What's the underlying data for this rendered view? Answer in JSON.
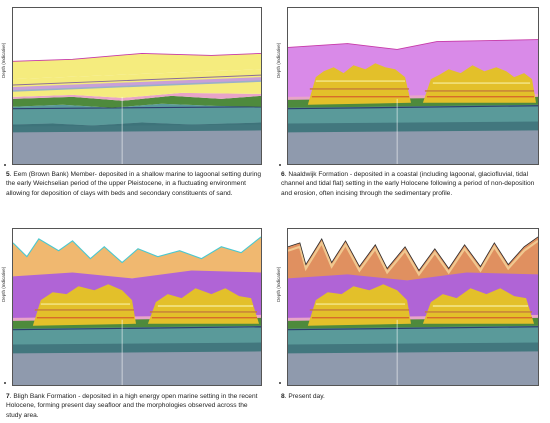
{
  "figure": {
    "axis_label": "Depth (Indicative)",
    "panels": [
      {
        "id": "p5",
        "number": "5",
        "text": ". Eem (Brown Bank) Member- deposited in a shallow marine to lagoonal setting during the early Weichselian period of the upper Pleistocene, in a fluctuating environment allowing for deposition of clays with beds and secondary constituents of sand."
      },
      {
        "id": "p6",
        "number": "6",
        "text": ". Naaldwijk Formation - deposited in a coastal (including lagoonal, glaciofluvial, tidal channel and tidal flat) setting in the early Holocene following a period of non-deposition and erosion, often incising through the sedimentary profile."
      },
      {
        "id": "p7",
        "number": "7",
        "text": ". Bligh Bank Formation - deposited in a high energy open marine setting in the recent Holocene, forming present day seafloor and the morphologies observed across the study area."
      },
      {
        "id": "p8",
        "number": "8",
        "text": ". Present day."
      }
    ]
  },
  "colors": {
    "deep_base": "#8f9aad",
    "teal": "#5a9a9a",
    "green": "#4e8a3c",
    "pink": "#e8a4c8",
    "yellow": "#f5ec7e",
    "gold": "#e3c02a",
    "magenta": "#b064d6",
    "light_magenta": "#d98ae8",
    "orange": "#f0b870",
    "red_line": "#d03a2a",
    "cyan_line": "#49c8d0"
  }
}
